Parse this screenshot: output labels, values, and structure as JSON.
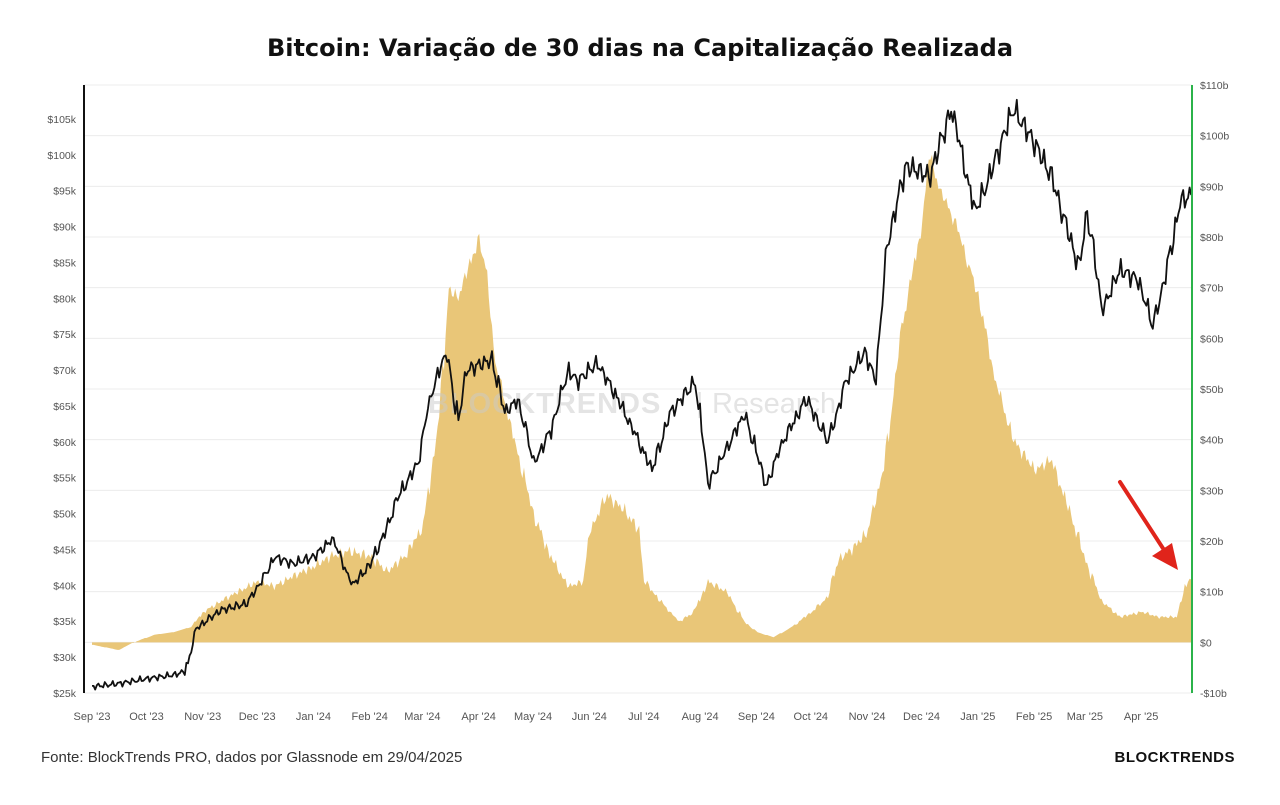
{
  "title": "Bitcoin: Variação de 30 dias na Capitalização Realizada",
  "footer": {
    "source": "Fonte: BlockTrends PRO, dados por Glassnode em 29/04/2025",
    "brand": "BLOCKTRENDS"
  },
  "watermark": {
    "brand": "BLOCKTRENDS",
    "sub": "Research"
  },
  "colors": {
    "area": "#E9C678",
    "price_line": "#111111",
    "right_axis": "#2BB34A",
    "arrow": "#E0241B"
  },
  "chart_data": {
    "type": "line",
    "title": "Bitcoin: Variação de 30 dias na Capitalização Realizada",
    "x_tick_labels": [
      "Sep '23",
      "Oct '23",
      "Nov '23",
      "Dec '23",
      "Jan '24",
      "Feb '24",
      "Mar '24",
      "Apr '24",
      "May '24",
      "Jun '24",
      "Jul '24",
      "Aug '24",
      "Sep '24",
      "Oct '24",
      "Nov '24",
      "Dec '24",
      "Jan '25",
      "Feb '25",
      "Mar '25",
      "Apr '25"
    ],
    "x_range": [
      "2023-09-01",
      "2025-04-29"
    ],
    "y_left": {
      "ticks": [
        25000,
        30000,
        35000,
        40000,
        45000,
        50000,
        55000,
        60000,
        65000,
        70000,
        75000,
        80000,
        85000,
        90000,
        95000,
        100000,
        105000
      ],
      "tick_labels": [
        "$25k",
        "$30k",
        "$35k",
        "$40k",
        "$45k",
        "$50k",
        "$55k",
        "$60k",
        "$65k",
        "$70k",
        "$75k",
        "$80k",
        "$85k",
        "$90k",
        "$95k",
        "$100k",
        "$105k"
      ],
      "range": [
        25000,
        107500
      ]
    },
    "y_right": {
      "ticks": [
        -10,
        0,
        10,
        20,
        30,
        40,
        50,
        60,
        70,
        80,
        90,
        100,
        110
      ],
      "tick_labels": [
        "-$10b",
        "$0",
        "$10b",
        "$20b",
        "$30b",
        "$40b",
        "$50b",
        "$60b",
        "$70b",
        "$80b",
        "$90b",
        "$100b",
        "$110b"
      ],
      "range": [
        -10,
        110
      ]
    },
    "series": [
      {
        "name": "",
        "type": "area",
        "axis": "right",
        "unit": "USD billions",
        "points": [
          [
            "2023-09-01",
            -0.5
          ],
          [
            "2023-09-15",
            -1.5
          ],
          [
            "2023-09-25",
            0.2
          ],
          [
            "2023-10-05",
            1.5
          ],
          [
            "2023-10-15",
            2
          ],
          [
            "2023-10-25",
            3
          ],
          [
            "2023-11-01",
            6
          ],
          [
            "2023-11-10",
            8
          ],
          [
            "2023-11-20",
            10
          ],
          [
            "2023-12-01",
            12
          ],
          [
            "2023-12-10",
            11
          ],
          [
            "2023-12-20",
            13
          ],
          [
            "2024-01-01",
            15
          ],
          [
            "2024-01-10",
            17
          ],
          [
            "2024-01-20",
            18
          ],
          [
            "2024-02-01",
            17
          ],
          [
            "2024-02-10",
            14
          ],
          [
            "2024-02-20",
            17
          ],
          [
            "2024-03-01",
            23
          ],
          [
            "2024-03-10",
            45
          ],
          [
            "2024-03-15",
            70
          ],
          [
            "2024-03-20",
            68
          ],
          [
            "2024-03-25",
            73
          ],
          [
            "2024-04-01",
            80
          ],
          [
            "2024-04-05",
            72
          ],
          [
            "2024-04-10",
            55
          ],
          [
            "2024-04-20",
            40
          ],
          [
            "2024-05-01",
            25
          ],
          [
            "2024-05-10",
            17
          ],
          [
            "2024-05-20",
            11
          ],
          [
            "2024-05-28",
            12
          ],
          [
            "2024-06-01",
            22
          ],
          [
            "2024-06-10",
            29
          ],
          [
            "2024-06-20",
            26
          ],
          [
            "2024-06-28",
            22
          ],
          [
            "2024-07-01",
            12
          ],
          [
            "2024-07-10",
            8
          ],
          [
            "2024-07-20",
            4
          ],
          [
            "2024-07-28",
            6
          ],
          [
            "2024-08-05",
            12
          ],
          [
            "2024-08-15",
            10
          ],
          [
            "2024-08-25",
            4
          ],
          [
            "2024-09-01",
            2
          ],
          [
            "2024-09-10",
            1
          ],
          [
            "2024-09-20",
            3
          ],
          [
            "2024-10-01",
            6
          ],
          [
            "2024-10-10",
            9
          ],
          [
            "2024-10-15",
            16
          ],
          [
            "2024-10-25",
            19
          ],
          [
            "2024-11-01",
            22
          ],
          [
            "2024-11-10",
            35
          ],
          [
            "2024-11-20",
            63
          ],
          [
            "2024-12-01",
            83
          ],
          [
            "2024-12-05",
            96
          ],
          [
            "2024-12-10",
            90
          ],
          [
            "2024-12-20",
            82
          ],
          [
            "2025-01-01",
            68
          ],
          [
            "2025-01-10",
            52
          ],
          [
            "2025-01-20",
            40
          ],
          [
            "2025-02-01",
            34
          ],
          [
            "2025-02-10",
            36
          ],
          [
            "2025-02-20",
            26
          ],
          [
            "2025-03-01",
            16
          ],
          [
            "2025-03-10",
            8
          ],
          [
            "2025-03-20",
            5
          ],
          [
            "2025-04-01",
            6
          ],
          [
            "2025-04-10",
            5
          ],
          [
            "2025-04-20",
            5
          ],
          [
            "2025-04-25",
            11
          ],
          [
            "2025-04-29",
            14
          ]
        ]
      },
      {
        "name": "",
        "type": "line",
        "axis": "left",
        "unit": "USD",
        "points": [
          [
            "2023-09-01",
            25900
          ],
          [
            "2023-09-15",
            26300
          ],
          [
            "2023-10-01",
            27000
          ],
          [
            "2023-10-15",
            27500
          ],
          [
            "2023-10-22",
            28000
          ],
          [
            "2023-10-28",
            34000
          ],
          [
            "2023-11-10",
            36500
          ],
          [
            "2023-11-25",
            37500
          ],
          [
            "2023-12-05",
            41500
          ],
          [
            "2023-12-10",
            44000
          ],
          [
            "2023-12-20",
            43000
          ],
          [
            "2024-01-01",
            44000
          ],
          [
            "2024-01-11",
            46500
          ],
          [
            "2024-01-22",
            40000
          ],
          [
            "2024-02-01",
            43000
          ],
          [
            "2024-02-10",
            48000
          ],
          [
            "2024-02-15",
            51800
          ],
          [
            "2024-02-27",
            57000
          ],
          [
            "2024-03-05",
            66500
          ],
          [
            "2024-03-10",
            70000
          ],
          [
            "2024-03-14",
            72500
          ],
          [
            "2024-03-20",
            63000
          ],
          [
            "2024-03-25",
            70000
          ],
          [
            "2024-04-08",
            71500
          ],
          [
            "2024-04-15",
            64000
          ],
          [
            "2024-04-22",
            66000
          ],
          [
            "2024-05-01",
            57000
          ],
          [
            "2024-05-10",
            61500
          ],
          [
            "2024-05-20",
            70000
          ],
          [
            "2024-05-25",
            68500
          ],
          [
            "2024-06-05",
            71000
          ],
          [
            "2024-06-15",
            66500
          ],
          [
            "2024-06-25",
            61500
          ],
          [
            "2024-07-05",
            56000
          ],
          [
            "2024-07-15",
            64000
          ],
          [
            "2024-07-29",
            68500
          ],
          [
            "2024-08-05",
            54000
          ],
          [
            "2024-08-15",
            59000
          ],
          [
            "2024-08-25",
            64000
          ],
          [
            "2024-09-06",
            54000
          ],
          [
            "2024-09-15",
            60000
          ],
          [
            "2024-09-28",
            66000
          ],
          [
            "2024-10-10",
            60000
          ],
          [
            "2024-10-20",
            68500
          ],
          [
            "2024-10-30",
            72500
          ],
          [
            "2024-11-05",
            69000
          ],
          [
            "2024-11-12",
            88000
          ],
          [
            "2024-11-22",
            98500
          ],
          [
            "2024-12-05",
            97000
          ],
          [
            "2024-12-17",
            106500
          ],
          [
            "2024-12-30",
            92000
          ],
          [
            "2025-01-07",
            97000
          ],
          [
            "2025-01-20",
            106500
          ],
          [
            "2025-01-31",
            102000
          ],
          [
            "2025-02-10",
            97000
          ],
          [
            "2025-02-25",
            84500
          ],
          [
            "2025-03-02",
            92000
          ],
          [
            "2025-03-10",
            78500
          ],
          [
            "2025-03-20",
            84000
          ],
          [
            "2025-03-30",
            82500
          ],
          [
            "2025-04-07",
            76000
          ],
          [
            "2025-04-15",
            84500
          ],
          [
            "2025-04-22",
            93500
          ],
          [
            "2025-04-29",
            94500
          ]
        ]
      }
    ],
    "annotation": "red arrow pointing to the latest rise of the area series",
    "grid": true,
    "legend": "none"
  }
}
